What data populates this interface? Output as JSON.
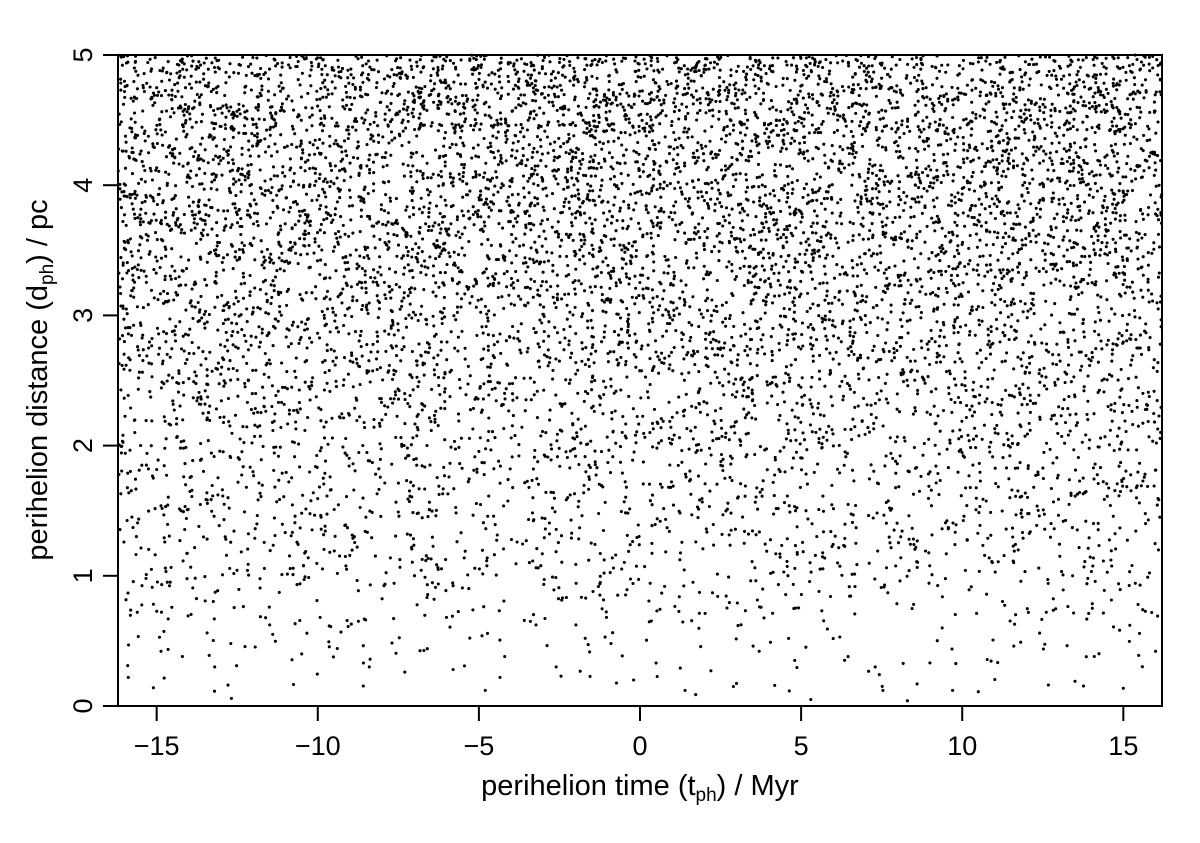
{
  "chart_data": {
    "type": "scatter",
    "title": "",
    "xlabel": {
      "prefix": "perihelion time (t",
      "sub": "ph",
      "suffix": ") / Myr"
    },
    "ylabel": {
      "prefix": "perihelion distance (d",
      "sub": "ph",
      "suffix": ") / pc"
    },
    "xlim": [
      -16.2,
      16.2
    ],
    "ylim": [
      0,
      5
    ],
    "xticks": [
      -15,
      -10,
      -5,
      0,
      5,
      10,
      15
    ],
    "xtick_labels": [
      "−15",
      "−10",
      "−5",
      "0",
      "5",
      "10",
      "15"
    ],
    "yticks": [
      0,
      1,
      2,
      3,
      4,
      5
    ],
    "ytick_labels": [
      "0",
      "1",
      "2",
      "3",
      "4",
      "5"
    ],
    "grid": false,
    "legend": "none",
    "point_color": "#000000",
    "points": {
      "approx_count": 9000,
      "distribution": "x uniform over xlim; y density increasing with distance (approximately proportional to d)",
      "x": [
        -15.9,
        -15.6,
        -15.1,
        -14.2,
        -13.2,
        -12.7,
        -11.4,
        -10.5,
        -9.6,
        -8.4,
        -7.3,
        -6.6,
        -5.8,
        -4.8,
        -4.2,
        -3.4,
        -2.6,
        -1.7,
        -0.9,
        -0.2,
        0.5,
        1.4,
        2.2,
        2.9,
        3.7,
        4.8,
        5.3,
        6.2,
        7.3,
        8.3,
        8.6,
        9.7,
        10.5,
        11.6,
        12.4,
        13.5,
        14.1,
        15.2,
        15.6,
        16.0
      ],
      "y": [
        0.31,
        0.72,
        0.14,
        0.38,
        0.3,
        0.48,
        0.55,
        0.4,
        0.61,
        0.3,
        0.26,
        0.44,
        0.28,
        0.12,
        0.38,
        0.65,
        0.3,
        0.52,
        0.48,
        0.2,
        0.33,
        0.12,
        0.27,
        0.15,
        0.42,
        0.35,
        0.05,
        0.53,
        0.3,
        0.04,
        0.17,
        0.12,
        0.11,
        0.46,
        0.56,
        0.19,
        0.38,
        0.62,
        0.74,
        0.42
      ]
    }
  }
}
